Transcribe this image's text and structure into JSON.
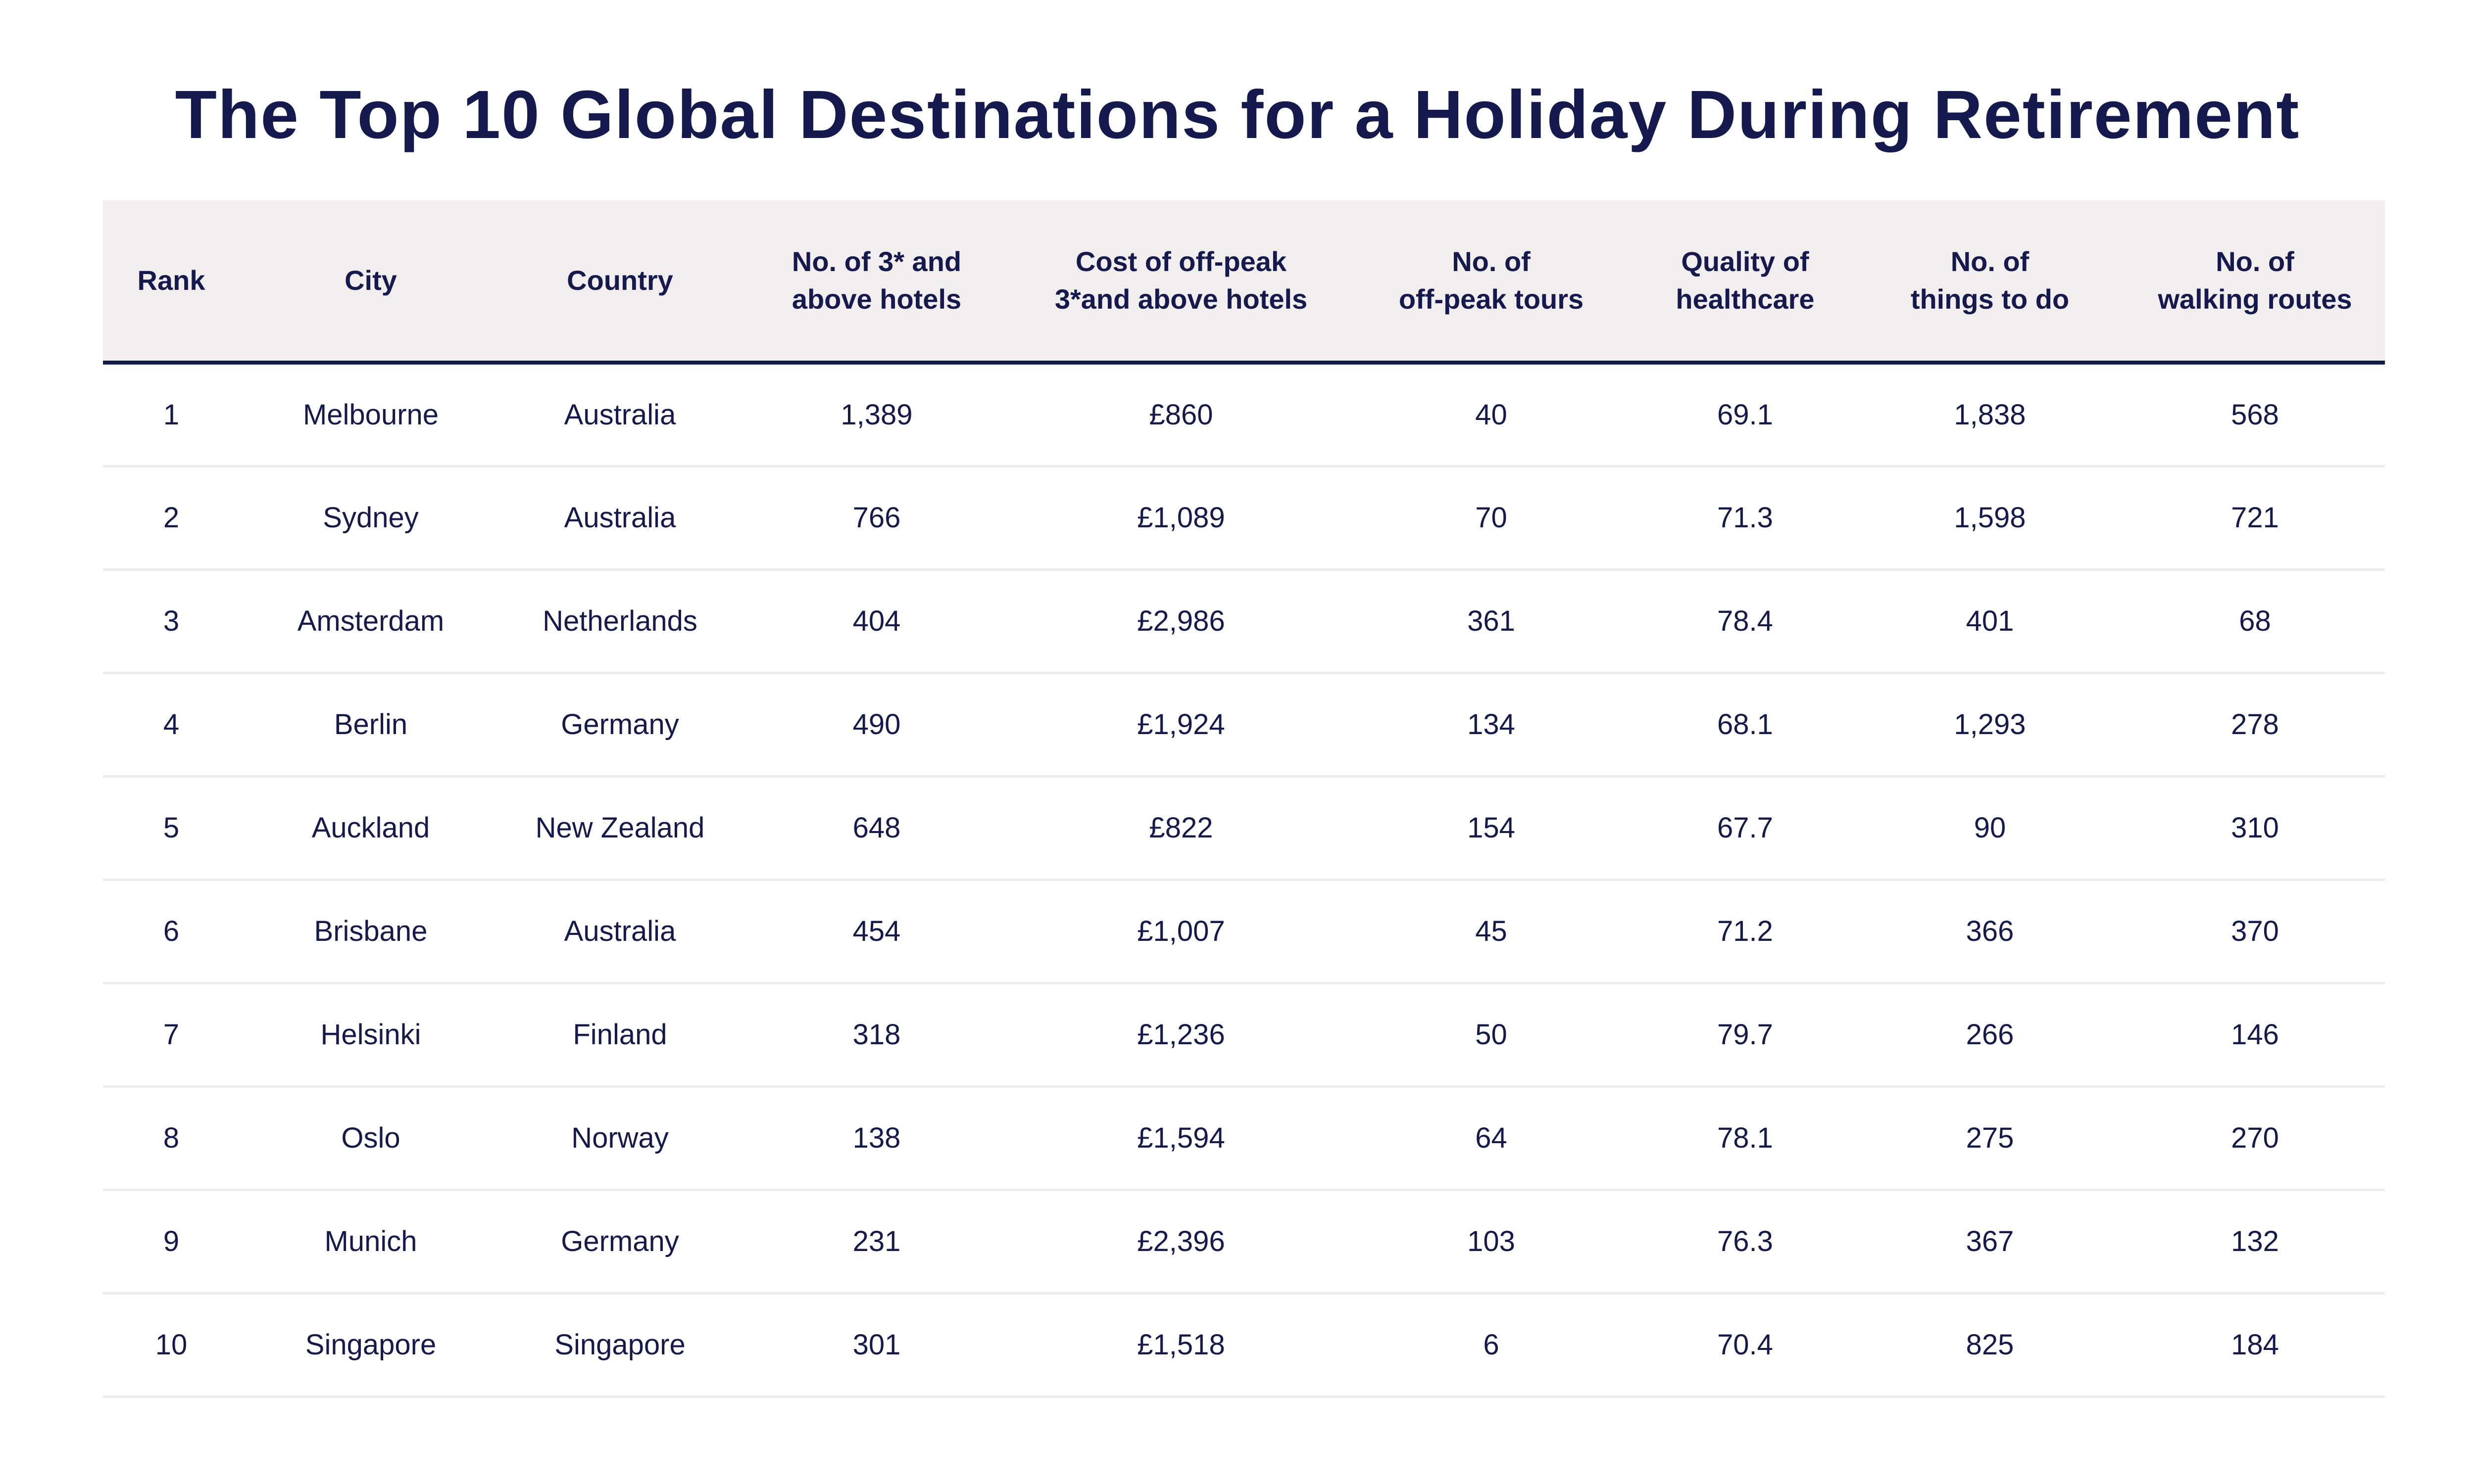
{
  "chart_data": {
    "type": "table",
    "title": "The Top 10 Global Destinations for a Holiday During Retirement",
    "columns": [
      {
        "line1": "Rank",
        "line2": ""
      },
      {
        "line1": "City",
        "line2": ""
      },
      {
        "line1": "Country",
        "line2": ""
      },
      {
        "line1": "No. of 3* and",
        "line2": "above hotels"
      },
      {
        "line1": "Cost of off-peak",
        "line2": "3*and above hotels"
      },
      {
        "line1": "No. of",
        "line2": "off-peak tours"
      },
      {
        "line1": "Quality of",
        "line2": "healthcare"
      },
      {
        "line1": "No. of",
        "line2": "things to do"
      },
      {
        "line1": "No. of",
        "line2": "walking routes"
      }
    ],
    "rows": [
      [
        "1",
        "Melbourne",
        "Australia",
        "1,389",
        "£860",
        "40",
        "69.1",
        "1,838",
        "568"
      ],
      [
        "2",
        "Sydney",
        "Australia",
        "766",
        "£1,089",
        "70",
        "71.3",
        "1,598",
        "721"
      ],
      [
        "3",
        "Amsterdam",
        "Netherlands",
        "404",
        "£2,986",
        "361",
        "78.4",
        "401",
        "68"
      ],
      [
        "4",
        "Berlin",
        "Germany",
        "490",
        "£1,924",
        "134",
        "68.1",
        "1,293",
        "278"
      ],
      [
        "5",
        "Auckland",
        "New Zealand",
        "648",
        "£822",
        "154",
        "67.7",
        "90",
        "310"
      ],
      [
        "6",
        "Brisbane",
        "Australia",
        "454",
        "£1,007",
        "45",
        "71.2",
        "366",
        "370"
      ],
      [
        "7",
        "Helsinki",
        "Finland",
        "318",
        "£1,236",
        "50",
        "79.7",
        "266",
        "146"
      ],
      [
        "8",
        "Oslo",
        "Norway",
        "138",
        "£1,594",
        "64",
        "78.1",
        "275",
        "270"
      ],
      [
        "9",
        "Munich",
        "Germany",
        "231",
        "£2,396",
        "103",
        "76.3",
        "367",
        "132"
      ],
      [
        "10",
        "Singapore",
        "Singapore",
        "301",
        "£1,518",
        "6",
        "70.4",
        "825",
        "184"
      ]
    ]
  },
  "colors": {
    "text": "#141a4e",
    "header_background": "#f1eeed",
    "header_rule": "#141a4e",
    "row_rule": "#ececec"
  }
}
